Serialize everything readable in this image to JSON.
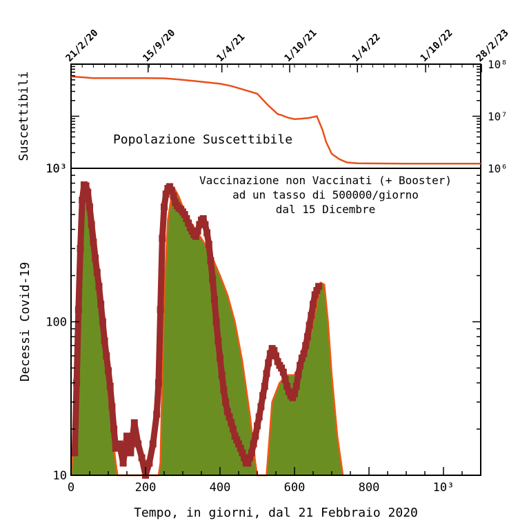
{
  "chart_data": [
    {
      "type": "line",
      "ylabel": "Suscettibili",
      "annotation": "Popolazione Suscettibile",
      "scale": "log",
      "ylim": [
        1000000,
        100000000
      ],
      "xlim": [
        0,
        1100
      ],
      "top_axis_dates": [
        "21/2/20",
        "15/9/20",
        "1/4/21",
        "1/10/21",
        "1/4/22",
        "1/10/22",
        "28/2/23"
      ],
      "top_axis_days": [
        0,
        207,
        405,
        587,
        769,
        952,
        1102
      ],
      "left_tick_labels": [
        "10³"
      ],
      "right_tick_labels": [
        "10⁸",
        "10⁷",
        "10⁶"
      ],
      "line_color": "#e8501c",
      "series": [
        {
          "x": [
            0,
            30,
            60,
            100,
            150,
            200,
            250,
            300,
            350,
            400,
            430,
            460,
            500,
            530,
            555,
            565,
            580,
            600,
            620,
            640,
            660,
            675,
            685,
            700,
            720,
            740,
            770,
            800,
            900,
            1000,
            1100
          ],
          "y": [
            58000000,
            56000000,
            54000000,
            54000000,
            54000000,
            54000000,
            53500000,
            50000000,
            46000000,
            42000000,
            38000000,
            33000000,
            27000000,
            16000000,
            11000000,
            10500000,
            9500000,
            8800000,
            9000000,
            9300000,
            10000000,
            5500000,
            3200000,
            1900000,
            1500000,
            1300000,
            1250000,
            1240000,
            1230000,
            1230000,
            1230000
          ]
        }
      ]
    },
    {
      "type": "area",
      "ylabel": "Decessi Covid-19",
      "xlabel": "Tempo, in giorni, dal 21 Febbraio 2020",
      "annotation": [
        "Vaccinazione non Vaccinati (+ Booster)",
        "ad un tasso di 500000/giorno",
        "dal 15 Dicembre"
      ],
      "scale": "log",
      "ylim": [
        10,
        1000
      ],
      "xlim": [
        0,
        1100
      ],
      "x_tick_labels": [
        "0",
        "200",
        "400",
        "600",
        "800",
        "10³"
      ],
      "x_ticks": [
        0,
        200,
        400,
        600,
        800,
        1000
      ],
      "y_tick_labels": [
        "10",
        "100",
        "10³"
      ],
      "y_ticks": [
        10,
        100,
        1000
      ],
      "colors": {
        "fill": "#6b8e23",
        "model": "#f05a14",
        "data": "#9b2a2a"
      },
      "series": [
        {
          "kind": "model",
          "x": [
            0,
            5,
            10,
            20,
            30,
            40,
            50,
            60,
            70,
            80,
            90,
            100,
            110,
            120,
            125,
            235,
            240,
            250,
            260,
            270,
            280,
            290,
            300,
            320,
            340,
            360,
            380,
            400,
            420,
            440,
            460,
            480,
            495,
            500,
            525,
            540,
            560,
            580,
            600,
            620,
            640,
            660,
            670,
            680,
            690,
            700,
            715,
            730
          ],
          "y": [
            10,
            15,
            40,
            200,
            560,
            820,
            700,
            460,
            280,
            150,
            75,
            38,
            20,
            12,
            10,
            10,
            12,
            150,
            460,
            660,
            720,
            650,
            560,
            450,
            380,
            320,
            260,
            200,
            150,
            100,
            55,
            25,
            12,
            10,
            10,
            30,
            40,
            45,
            45,
            55,
            75,
            130,
            180,
            175,
            100,
            45,
            18,
            10
          ]
        },
        {
          "kind": "data",
          "x": [
            10,
            15,
            20,
            25,
            30,
            35,
            40,
            45,
            50,
            55,
            60,
            65,
            70,
            75,
            80,
            85,
            90,
            95,
            100,
            105,
            110,
            115,
            120,
            130,
            140,
            150,
            160,
            170,
            180,
            190,
            200,
            210,
            220,
            230,
            235,
            240,
            245,
            250,
            255,
            260,
            265,
            270,
            275,
            280,
            285,
            290,
            295,
            300,
            305,
            310,
            315,
            320,
            325,
            330,
            335,
            340,
            345,
            350,
            355,
            360,
            365,
            370,
            375,
            380,
            385,
            390,
            395,
            400,
            405,
            410,
            415,
            420,
            425,
            430,
            435,
            440,
            445,
            450,
            455,
            460,
            465,
            470,
            475,
            480,
            485,
            490,
            495,
            500,
            505,
            510,
            515,
            520,
            525,
            530,
            535,
            540,
            545,
            550,
            555,
            560,
            565,
            570,
            575,
            580,
            585,
            590,
            595,
            600,
            605,
            610,
            615,
            620,
            625,
            630,
            635,
            640,
            645,
            650,
            655,
            660,
            665
          ],
          "y": [
            14,
            40,
            120,
            300,
            620,
            780,
            770,
            700,
            560,
            430,
            330,
            260,
            210,
            170,
            130,
            100,
            75,
            60,
            48,
            38,
            28,
            20,
            15,
            16,
            12,
            18,
            14,
            22,
            16,
            13,
            10,
            12,
            16,
            25,
            40,
            120,
            350,
            560,
            680,
            740,
            760,
            720,
            660,
            600,
            570,
            550,
            540,
            520,
            500,
            470,
            440,
            410,
            390,
            370,
            360,
            390,
            430,
            460,
            470,
            430,
            380,
            320,
            250,
            190,
            140,
            100,
            75,
            58,
            45,
            36,
            30,
            26,
            24,
            22,
            20,
            18,
            17,
            16,
            15,
            14,
            13,
            12,
            12,
            13,
            14,
            16,
            18,
            21,
            24,
            28,
            33,
            38,
            46,
            54,
            62,
            67,
            65,
            60,
            55,
            52,
            50,
            47,
            42,
            38,
            35,
            33,
            32,
            34,
            38,
            45,
            52,
            58,
            62,
            70,
            80,
            95,
            110,
            130,
            150,
            160,
            170
          ]
        }
      ]
    }
  ]
}
